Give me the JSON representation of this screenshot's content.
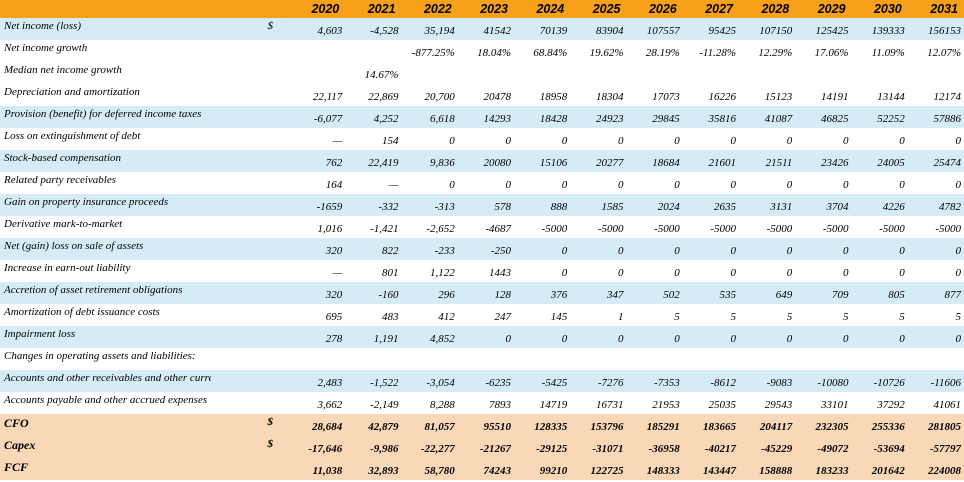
{
  "years": [
    "2020",
    "2021",
    "2022",
    "2023",
    "2024",
    "2025",
    "2026",
    "2027",
    "2028",
    "2029",
    "2030",
    "2031"
  ],
  "rows": [
    {
      "label": "Net income (loss)",
      "cur": "$",
      "values": [
        "4,603",
        "-4,528",
        "35,194",
        "41542",
        "70139",
        "83904",
        "107557",
        "95425",
        "107150",
        "125425",
        "139333",
        "156153"
      ]
    },
    {
      "label": "Net income growth",
      "cur": "",
      "values": [
        "",
        "",
        "-877.25%",
        "18.04%",
        "68.84%",
        "19.62%",
        "28.19%",
        "-11.28%",
        "12.29%",
        "17.06%",
        "11.09%",
        "12.07%"
      ]
    },
    {
      "label": "Median net income growth",
      "cur": "",
      "values": [
        "",
        "14.67%",
        "",
        "",
        "",
        "",
        "",
        "",
        "",
        "",
        "",
        ""
      ]
    },
    {
      "label": "Depreciation and amortization",
      "cur": "",
      "values": [
        "22,117",
        "22,869",
        "20,700",
        "20478",
        "18958",
        "18304",
        "17073",
        "16226",
        "15123",
        "14191",
        "13144",
        "12174"
      ]
    },
    {
      "label": "Provision (benefit) for deferred income taxes",
      "cur": "",
      "values": [
        "-6,077",
        "4,252",
        "6,618",
        "14293",
        "18428",
        "24923",
        "29845",
        "35816",
        "41087",
        "46825",
        "52252",
        "57886"
      ]
    },
    {
      "label": "Loss on extinguishment of debt",
      "cur": "",
      "values": [
        "—",
        "154",
        "0",
        "0",
        "0",
        "0",
        "0",
        "0",
        "0",
        "0",
        "0",
        "0"
      ]
    },
    {
      "label": "Stock-based compensation",
      "cur": "",
      "values": [
        "762",
        "22,419",
        "9,836",
        "20080",
        "15106",
        "20277",
        "18684",
        "21601",
        "21511",
        "23426",
        "24005",
        "25474"
      ]
    },
    {
      "label": "Related party receivables",
      "cur": "",
      "values": [
        "164",
        "—",
        "0",
        "0",
        "0",
        "0",
        "0",
        "0",
        "0",
        "0",
        "0",
        "0"
      ]
    },
    {
      "label": "Gain on property insurance proceeds",
      "cur": "",
      "values": [
        "-1659",
        "-332",
        "-313",
        "578",
        "888",
        "1585",
        "2024",
        "2635",
        "3131",
        "3704",
        "4226",
        "4782"
      ]
    },
    {
      "label": "Derivative mark-to-market",
      "cur": "",
      "values": [
        "1,016",
        "-1,421",
        "-2,652",
        "-4687",
        "-5000",
        "-5000",
        "-5000",
        "-5000",
        "-5000",
        "-5000",
        "-5000",
        "-5000"
      ]
    },
    {
      "label": "Net (gain) loss on sale of assets",
      "cur": "",
      "values": [
        "320",
        "822",
        "-233",
        "-250",
        "0",
        "0",
        "0",
        "0",
        "0",
        "0",
        "0",
        "0"
      ]
    },
    {
      "label": "Increase in earn-out liability",
      "cur": "",
      "values": [
        "—",
        "801",
        "1,122",
        "1443",
        "0",
        "0",
        "0",
        "0",
        "0",
        "0",
        "0",
        "0"
      ]
    },
    {
      "label": "Accretion of asset retirement obligations",
      "cur": "",
      "values": [
        "320",
        "-160",
        "296",
        "128",
        "376",
        "347",
        "502",
        "535",
        "649",
        "709",
        "805",
        "877"
      ]
    },
    {
      "label": "Amortization of debt issuance costs",
      "cur": "",
      "values": [
        "695",
        "483",
        "412",
        "247",
        "145",
        "1",
        "5",
        "5",
        "5",
        "5",
        "5",
        "5"
      ]
    },
    {
      "label": "Impairment loss",
      "cur": "",
      "values": [
        "278",
        "1,191",
        "4,852",
        "0",
        "0",
        "0",
        "0",
        "0",
        "0",
        "0",
        "0",
        "0"
      ]
    },
    {
      "label": "Changes in operating assets and liabilities:",
      "cur": "",
      "values": [
        "",
        "",
        "",
        "",
        "",
        "",
        "",
        "",
        "",
        "",
        "",
        ""
      ]
    },
    {
      "label": "Accounts and other receivables and other current assets",
      "cur": "",
      "values": [
        "2,483",
        "-1,522",
        "-3,054",
        "-6235",
        "-5425",
        "-7276",
        "-7353",
        "-8612",
        "-9083",
        "-10080",
        "-10726",
        "-11606"
      ]
    },
    {
      "label": "Accounts payable and other accrued expenses",
      "cur": "",
      "values": [
        "3,662",
        "-2,149",
        "8,288",
        "7893",
        "14719",
        "16731",
        "21953",
        "25035",
        "29543",
        "33101",
        "37292",
        "41061"
      ]
    },
    {
      "label": "CFO",
      "cur": "$",
      "values": [
        "28,684",
        "42,879",
        "81,057",
        "95510",
        "128335",
        "153796",
        "185291",
        "183665",
        "204117",
        "232305",
        "255336",
        "281805"
      ]
    },
    {
      "label": "Capex",
      "cur": "$",
      "values": [
        "-17,646",
        "-9,986",
        "-22,277",
        "-21267",
        "-29125",
        "-31071",
        "-36958",
        "-40217",
        "-45229",
        "-49072",
        "-53694",
        "-57797"
      ]
    },
    {
      "label": "FCF",
      "cur": "",
      "values": [
        "11,038",
        "32,893",
        "58,780",
        "74243",
        "99210",
        "122725",
        "148333",
        "143447",
        "158888",
        "183233",
        "201642",
        "224008"
      ]
    }
  ]
}
